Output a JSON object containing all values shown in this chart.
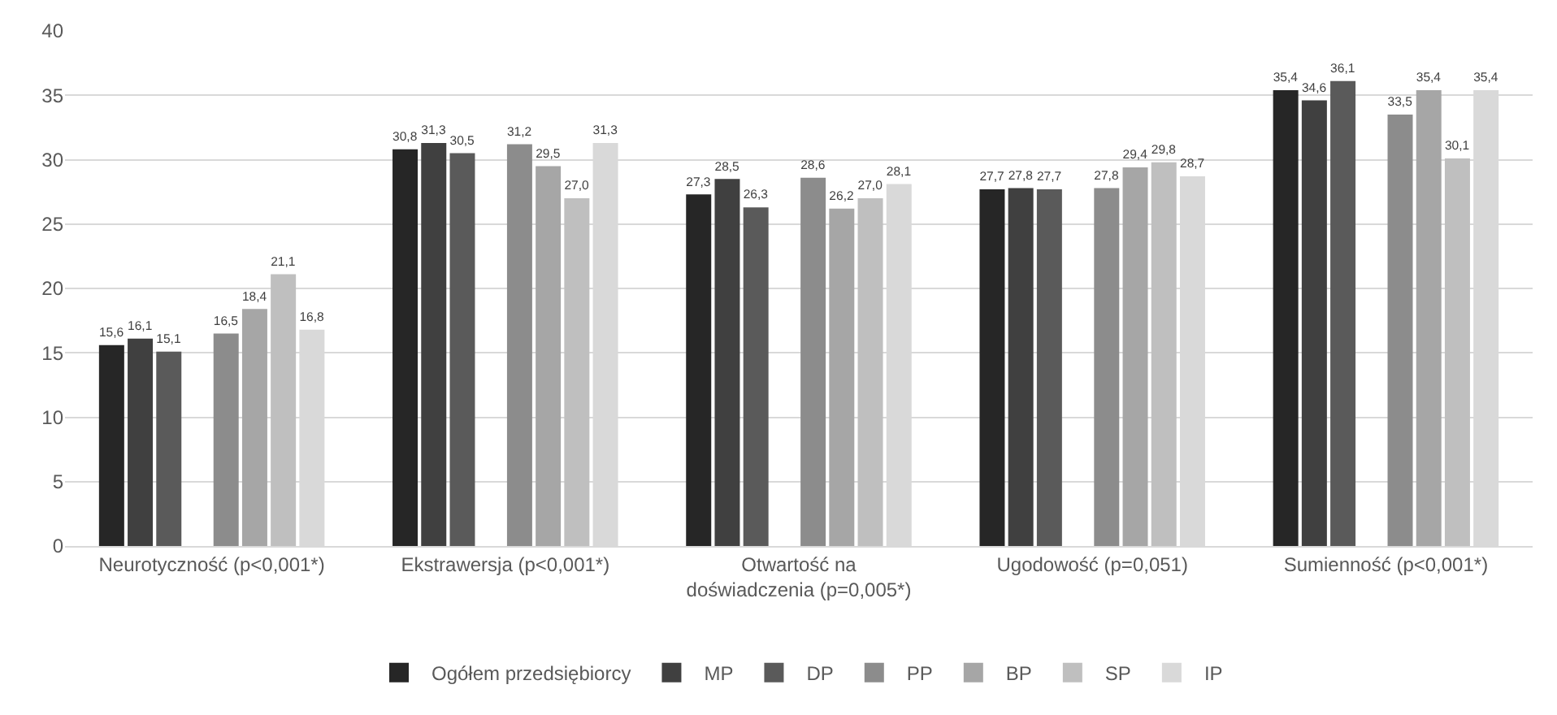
{
  "chart_data": {
    "type": "bar",
    "categories": [
      "Neurotyczność (p<0,001*)",
      "Ekstrawersja (p<0,001*)",
      "Otwartość na doświadczenia (p=0,005*)",
      "Ugodowość (p=0,051)",
      "Sumienność (p<0,001*)"
    ],
    "series": [
      {
        "name": "Ogółem przedsiębiorcy",
        "color": "#262626",
        "values": [
          15.6,
          30.8,
          27.3,
          27.7,
          35.4
        ],
        "value_labels": [
          "15,6",
          "30,8",
          "27,3",
          "27,7",
          "35,4"
        ]
      },
      {
        "name": "MP",
        "color": "#404040",
        "values": [
          16.1,
          31.3,
          28.5,
          27.8,
          34.6
        ],
        "value_labels": [
          "16,1",
          "31,3",
          "28,5",
          "27,8",
          "34,6"
        ]
      },
      {
        "name": "DP",
        "color": "#5a5a5a",
        "values": [
          15.1,
          30.5,
          26.3,
          27.7,
          36.1
        ],
        "value_labels": [
          "15,1",
          "30,5",
          "26,3",
          "27,7",
          "36,1"
        ]
      },
      {
        "color": "#ffffff",
        "values": [
          null,
          null,
          null,
          null,
          null
        ]
      },
      {
        "name": "PP",
        "color": "#8c8c8c",
        "values": [
          16.5,
          31.2,
          28.6,
          27.8,
          33.5
        ],
        "value_labels": [
          "16,5",
          "31,2",
          "28,6",
          "27,8",
          "33,5"
        ]
      },
      {
        "name": "BP",
        "color": "#a6a6a6",
        "values": [
          18.4,
          29.5,
          26.2,
          29.4,
          35.4
        ],
        "value_labels": [
          "18,4",
          "29,5",
          "26,2",
          "29,4",
          "35,4"
        ]
      },
      {
        "name": "SP",
        "color": "#bfbfbf",
        "values": [
          21.1,
          27.0,
          27.0,
          29.8,
          30.1
        ],
        "value_labels": [
          "21,1",
          "27,0",
          "27,0",
          "29,8",
          "30,1"
        ]
      },
      {
        "name": "IP",
        "color": "#d9d9d9",
        "values": [
          16.8,
          31.3,
          28.1,
          28.7,
          35.4
        ],
        "value_labels": [
          "16,8",
          "31,3",
          "28,1",
          "28,7",
          "35,4"
        ]
      }
    ],
    "ylim": [
      0,
      40
    ],
    "yticks": [
      0,
      5,
      10,
      15,
      20,
      25,
      30,
      35,
      40
    ],
    "grid": "y",
    "legend": "bottom"
  }
}
